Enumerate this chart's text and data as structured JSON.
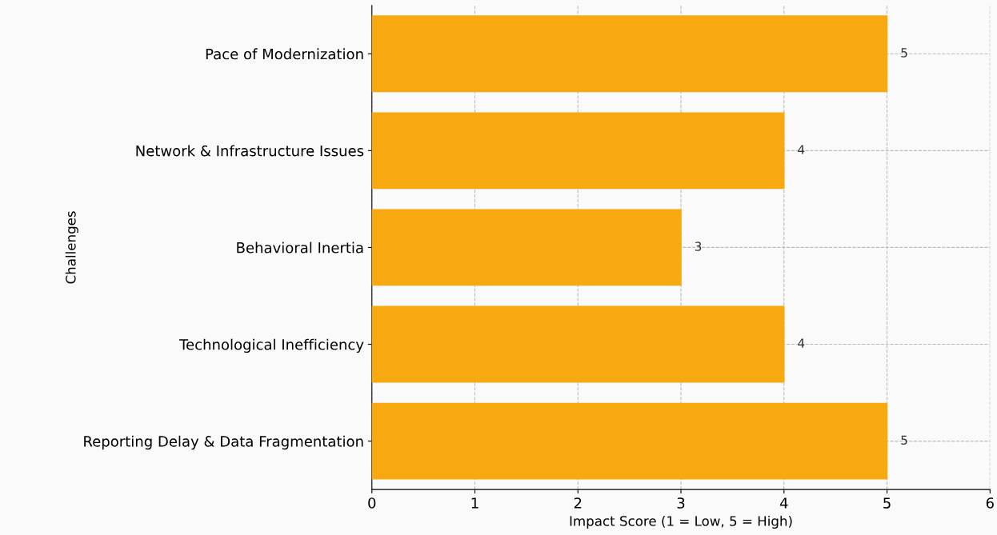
{
  "chart_data": {
    "type": "bar",
    "orientation": "horizontal",
    "categories": [
      "Pace of Modernization",
      "Network & Infrastructure Issues",
      "Behavioral Inertia",
      "Technological Inefficiency",
      "Reporting Delay & Data Fragmentation"
    ],
    "values": [
      5,
      4,
      3,
      4,
      5
    ],
    "color": "#f7a90f",
    "xlim": [
      0,
      6
    ],
    "xticks": [
      0,
      1,
      2,
      3,
      4,
      5,
      6
    ],
    "xlabel": "Impact Score (1 = Low, 5 = High)",
    "ylabel": "Challenges",
    "grid": true,
    "data_labels": true
  }
}
